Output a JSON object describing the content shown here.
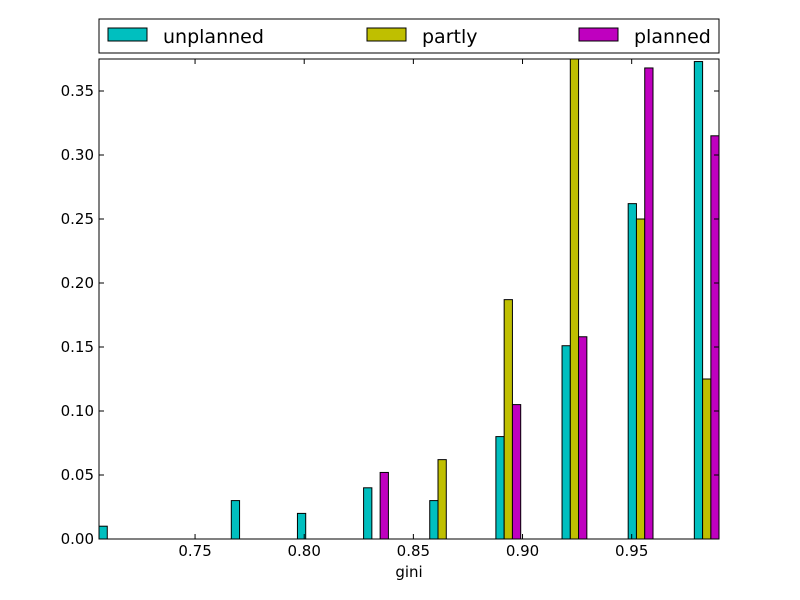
{
  "chart_data": {
    "type": "bar",
    "xlabel": "gini",
    "ylabel": "",
    "title": "",
    "xlim": [
      0.706,
      0.99
    ],
    "ylim": [
      0,
      0.375
    ],
    "x_ticks": [
      0.75,
      0.8,
      0.85,
      0.9,
      0.95
    ],
    "x_tick_labels": [
      "0.75",
      "0.80",
      "0.85",
      "0.90",
      "0.95"
    ],
    "y_ticks": [
      0.0,
      0.05,
      0.1,
      0.15,
      0.2,
      0.25,
      0.3,
      0.35
    ],
    "y_tick_labels": [
      "0.00",
      "0.05",
      "0.10",
      "0.15",
      "0.20",
      "0.25",
      "0.30",
      "0.35"
    ],
    "bin_starts": [
      0.706,
      0.7363,
      0.7666,
      0.7969,
      0.8272,
      0.8575,
      0.8878,
      0.9181,
      0.9484,
      0.9787
    ],
    "bar_width": 0.00379,
    "series": [
      {
        "name": "unplanned",
        "color": "#00bfbf",
        "values": [
          0.01,
          0.0,
          0.03,
          0.02,
          0.04,
          0.03,
          0.08,
          0.151,
          0.262,
          0.373
        ]
      },
      {
        "name": "partly",
        "color": "#bfbf00",
        "values": [
          0.0,
          0.0,
          0.0,
          0.0,
          0.0,
          0.062,
          0.187,
          0.375,
          0.25,
          0.125
        ]
      },
      {
        "name": "planned",
        "color": "#bf00bf",
        "values": [
          0.0,
          0.0,
          0.0,
          0.0,
          0.052,
          0.0,
          0.105,
          0.158,
          0.368,
          0.315
        ]
      }
    ],
    "grid": false,
    "legend_position": "top, above plot, single row"
  }
}
